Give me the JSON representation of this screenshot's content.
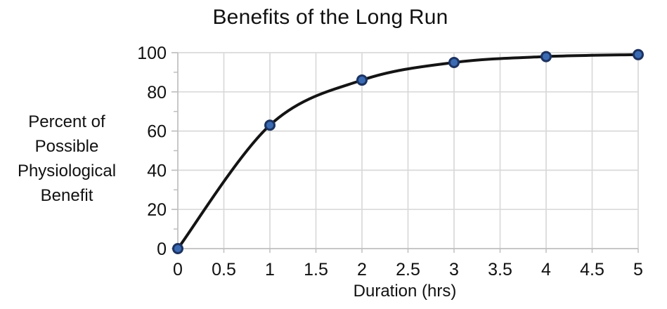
{
  "chart_data": {
    "type": "line",
    "title": "Benefits of the Long Run",
    "xlabel": "Duration (hrs)",
    "ylabel": "Percent of\nPossible\nPhysiological\nBenefit",
    "x": [
      0,
      1,
      2,
      3,
      4,
      5
    ],
    "y": [
      0,
      63,
      86,
      95,
      98,
      99
    ],
    "xlim": [
      0,
      5
    ],
    "ylim": [
      0,
      100
    ],
    "x_ticks": [
      0,
      0.5,
      1,
      1.5,
      2,
      2.5,
      3,
      3.5,
      4,
      4.5,
      5
    ],
    "x_tick_labels": [
      "0",
      "0.5",
      "1",
      "1.5",
      "2",
      "2.5",
      "3",
      "3.5",
      "4",
      "4.5",
      "5"
    ],
    "y_ticks": [
      0,
      20,
      40,
      60,
      80,
      100
    ],
    "y_tick_labels": [
      "0",
      "20",
      "40",
      "60",
      "80",
      "100"
    ],
    "y_minor_ticks": [
      10,
      30,
      50,
      70,
      90
    ],
    "grid": true,
    "legend": false,
    "smooth": true,
    "colors": {
      "line": "#141414",
      "marker_fill": "#3a6ab2",
      "marker_stroke": "#1c3360",
      "gridline": "#d9d9d9",
      "axis": "#bfbfbf",
      "text": "#111111"
    }
  }
}
